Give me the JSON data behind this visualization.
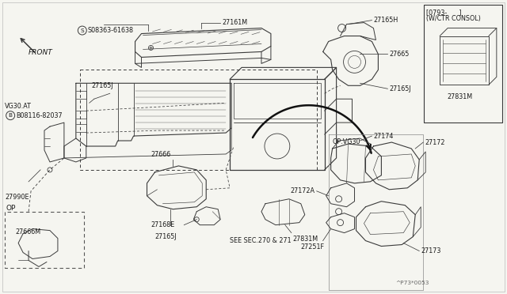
{
  "bg_color": "#f5f5f0",
  "line_color": "#3a3a3a",
  "text_color": "#1a1a1a",
  "fig_width": 6.4,
  "fig_height": 3.72,
  "dpi": 100,
  "diagram_note": "^P73*0053",
  "labels": {
    "S_label": "S08363-61638",
    "B_label": "B08116-82037",
    "VG30_AT": "VG30.AT",
    "FRONT": "FRONT",
    "OP": "OP",
    "OP_VG30": "OP:VG30",
    "bracket_label": "[0793-      ]",
    "bracket_sub": "(W/CTR CONSOL)",
    "see_sec": "SEE SEC.270 & 271",
    "part_27161M": "27161M",
    "part_27165J": "27165J",
    "part_27165H": "27165H",
    "part_27665": "27665",
    "part_27666": "27666",
    "part_27666M": "27666M",
    "part_27168E": "27168E",
    "part_27831M": "27831M",
    "part_27990E": "27990E",
    "part_27172A": "27172A",
    "part_27172": "27172",
    "part_27173": "27173",
    "part_27174": "27174",
    "part_27251F": "27251F"
  },
  "fs": 5.8,
  "fm": 6.5,
  "fl": 7.5
}
